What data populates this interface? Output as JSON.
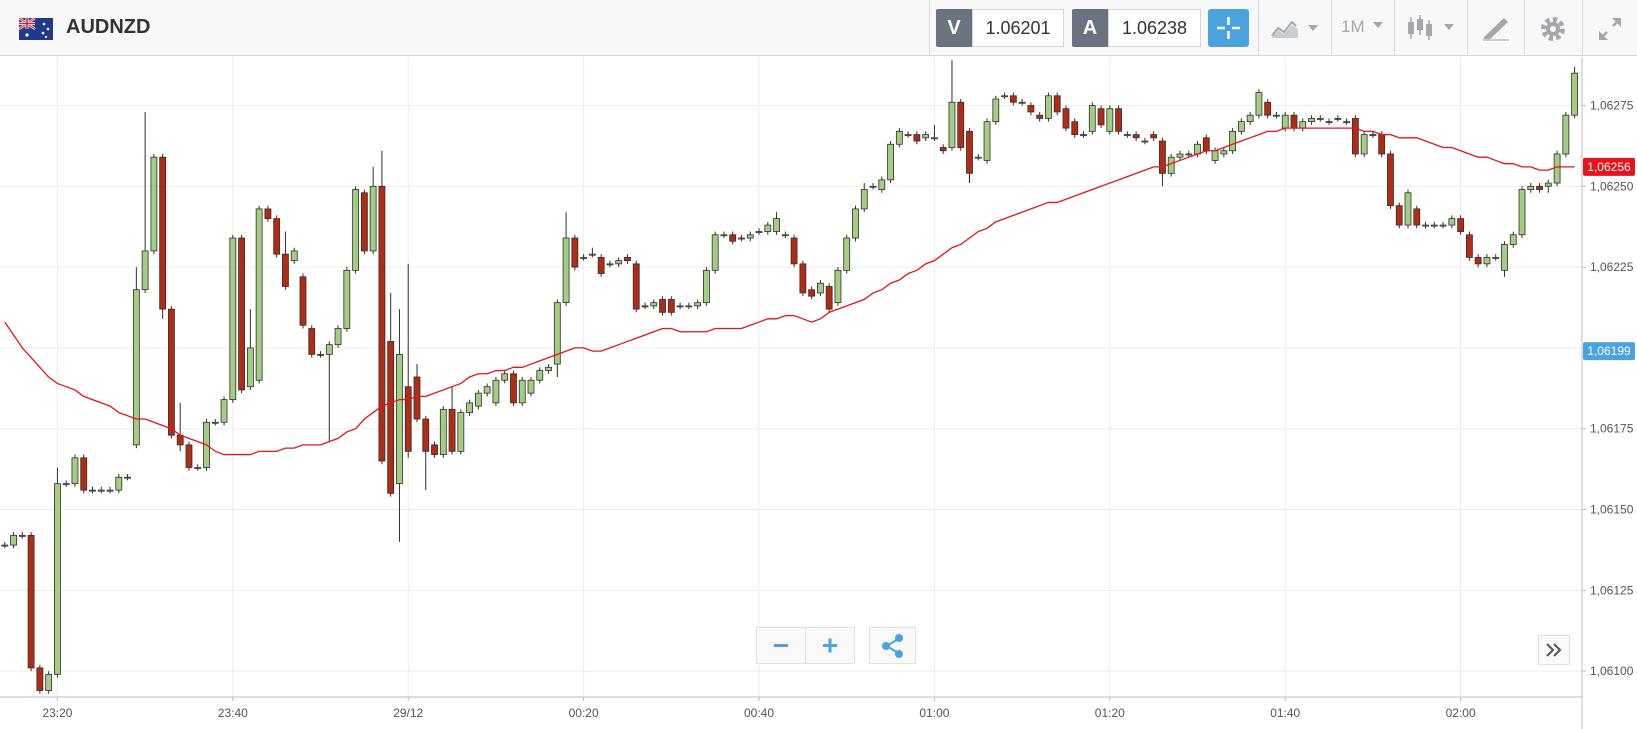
{
  "header": {
    "symbol": "AUDNZD",
    "bid_label": "V",
    "bid": "1.06201",
    "ask_label": "A",
    "ask": "1.06238",
    "timeframe": "1M"
  },
  "chart_data": {
    "type": "candlestick",
    "categories": [
      null,
      null,
      null,
      null,
      null,
      null,
      "23:20",
      null,
      null,
      null,
      null,
      null,
      null,
      null,
      null,
      null,
      null,
      null,
      null,
      null,
      null,
      null,
      null,
      null,
      null,
      null,
      "23:40",
      null,
      null,
      null,
      null,
      null,
      null,
      null,
      null,
      null,
      null,
      null,
      null,
      null,
      null,
      null,
      null,
      null,
      null,
      null,
      "29/12",
      null,
      null,
      null,
      null,
      null,
      null,
      null,
      null,
      null,
      null,
      null,
      null,
      null,
      null,
      null,
      null,
      null,
      null,
      null,
      "00:20",
      null,
      null,
      null,
      null,
      null,
      null,
      null,
      null,
      null,
      null,
      null,
      null,
      null,
      null,
      null,
      null,
      null,
      null,
      null,
      "00:40",
      null,
      null,
      null,
      null,
      null,
      null,
      null,
      null,
      null,
      null,
      null,
      null,
      null,
      null,
      null,
      null,
      null,
      null,
      null,
      "01:00",
      null,
      null,
      null,
      null,
      null,
      null,
      null,
      null,
      null,
      null,
      null,
      null,
      null,
      null,
      null,
      null,
      null,
      null,
      null,
      "01:20",
      null,
      null,
      null,
      null,
      null,
      null,
      null,
      null,
      null,
      null,
      null,
      null,
      null,
      null,
      null,
      null,
      null,
      null,
      null,
      "01:40",
      null,
      null,
      null,
      null,
      null,
      null,
      null,
      null,
      null,
      null,
      null,
      null,
      null,
      null,
      null,
      null,
      null,
      null,
      null,
      "02:00",
      null,
      null,
      null,
      null,
      null,
      null,
      null,
      null,
      null,
      null,
      null,
      null,
      null
    ],
    "open": [
      1.06139,
      1.06139,
      1.06142,
      1.06142,
      1.06101,
      1.06094,
      1.06099,
      1.06158,
      1.06158,
      1.06166,
      1.06156,
      1.06156,
      1.06156,
      1.06156,
      1.0616,
      1.0617,
      1.06218,
      1.0623,
      1.06259,
      1.06212,
      1.06173,
      1.0617,
      1.06163,
      1.06163,
      1.06177,
      1.06177,
      1.06184,
      1.06234,
      1.06188,
      1.0619,
      1.06243,
      1.0624,
      1.06229,
      1.06227,
      1.06222,
      1.06206,
      1.06198,
      1.06198,
      1.06201,
      1.06206,
      1.06224,
      1.06248,
      1.0623,
      1.0625,
      1.06202,
      1.06158,
      1.06188,
      1.06191,
      1.06178,
      1.0617,
      1.06167,
      1.06181,
      1.06168,
      1.0618,
      1.06182,
      1.06186,
      1.06183,
      1.0619,
      1.06192,
      1.06183,
      1.06186,
      1.0619,
      1.06193,
      1.06195,
      1.06214,
      1.06234,
      1.06228,
      1.06229,
      1.06228,
      1.06226,
      1.06226,
      1.06228,
      1.06226,
      1.06213,
      1.06213,
      1.06215,
      1.06215,
      1.06213,
      1.06213,
      1.06213,
      1.06214,
      1.06224,
      1.06235,
      1.06235,
      1.06234,
      1.06234,
      1.06236,
      1.06236,
      1.06236,
      1.06235,
      1.06234,
      1.06226,
      1.06218,
      1.06217,
      1.06219,
      1.06214,
      1.06224,
      1.06234,
      1.06243,
      1.0625,
      1.06249,
      1.06252,
      1.06263,
      1.06266,
      1.06266,
      1.06265,
      1.06265,
      1.06262,
      1.06262,
      1.06276,
      1.06267,
      1.06259,
      1.06258,
      1.0627,
      1.06278,
      1.06278,
      1.06276,
      1.06275,
      1.06272,
      1.06271,
      1.06278,
      1.06274,
      1.0627,
      1.06266,
      1.06267,
      1.06274,
      1.06267,
      1.06274,
      1.06266,
      1.06266,
      1.06264,
      1.06266,
      1.06264,
      1.06254,
      1.06259,
      1.0626,
      1.0626,
      1.06265,
      1.06258,
      1.0626,
      1.06261,
      1.06267,
      1.0627,
      1.06272,
      1.06276,
      1.06272,
      1.06268,
      1.06272,
      1.06268,
      1.0627,
      1.06271,
      1.0627,
      1.06271,
      1.0627,
      1.06271,
      1.0626,
      1.06266,
      1.06266,
      1.0626,
      1.06244,
      1.06238,
      1.06243,
      1.06238,
      1.06238,
      1.06238,
      1.06238,
      1.0624,
      1.06235,
      1.06228,
      1.06226,
      1.06228,
      1.06224,
      1.06232,
      1.06235,
      1.06249,
      1.0625,
      1.0625,
      1.06251,
      1.0626,
      1.06272
    ],
    "high": [
      1.0614,
      1.06143,
      1.06143,
      1.06143,
      1.06102,
      1.061,
      1.06163,
      1.06159,
      1.06167,
      1.06167,
      1.06157,
      1.06157,
      1.06157,
      1.06161,
      1.06161,
      1.06225,
      1.06273,
      1.0626,
      1.0626,
      1.06213,
      1.06183,
      1.06171,
      1.06164,
      1.06178,
      1.06178,
      1.06185,
      1.06235,
      1.06235,
      1.06212,
      1.06244,
      1.06244,
      1.06241,
      1.06236,
      1.06231,
      1.06223,
      1.06207,
      1.06199,
      1.06202,
      1.06207,
      1.06225,
      1.0625,
      1.06249,
      1.06256,
      1.06261,
      1.06217,
      1.06212,
      1.06226,
      1.06195,
      1.06179,
      1.06171,
      1.06182,
      1.06188,
      1.06181,
      1.06184,
      1.06187,
      1.06189,
      1.06191,
      1.06193,
      1.06193,
      1.06191,
      1.06191,
      1.06194,
      1.06195,
      1.06215,
      1.06242,
      1.06235,
      1.06229,
      1.06231,
      1.06229,
      1.06227,
      1.06228,
      1.06229,
      1.06227,
      1.06214,
      1.06215,
      1.06216,
      1.06216,
      1.06214,
      1.06214,
      1.06215,
      1.06225,
      1.06236,
      1.06236,
      1.06236,
      1.06235,
      1.06236,
      1.06237,
      1.06239,
      1.06242,
      1.06236,
      1.06235,
      1.06227,
      1.06219,
      1.06221,
      1.0622,
      1.06225,
      1.06235,
      1.06244,
      1.06251,
      1.06251,
      1.06253,
      1.06264,
      1.06268,
      1.06267,
      1.06267,
      1.06267,
      1.06269,
      1.06263,
      1.06289,
      1.06277,
      1.06268,
      1.0626,
      1.06271,
      1.06278,
      1.06279,
      1.06279,
      1.06277,
      1.06276,
      1.06273,
      1.06279,
      1.06279,
      1.06275,
      1.06271,
      1.06267,
      1.06276,
      1.06275,
      1.06275,
      1.06275,
      1.06267,
      1.06267,
      1.06265,
      1.06267,
      1.06265,
      1.0626,
      1.06261,
      1.06261,
      1.06264,
      1.06266,
      1.06262,
      1.06262,
      1.06268,
      1.06271,
      1.06273,
      1.0628,
      1.06277,
      1.06273,
      1.06273,
      1.06273,
      1.06271,
      1.06272,
      1.06272,
      1.06271,
      1.06272,
      1.06271,
      1.06272,
      1.06267,
      1.06267,
      1.06267,
      1.06261,
      1.06245,
      1.06249,
      1.06244,
      1.06239,
      1.06239,
      1.06239,
      1.06241,
      1.06241,
      1.06236,
      1.06229,
      1.06229,
      1.06229,
      1.06233,
      1.06236,
      1.0625,
      1.06251,
      1.06251,
      1.06252,
      1.06261,
      1.06273,
      1.06287
    ],
    "low": [
      1.06138,
      1.06138,
      1.06141,
      1.061,
      1.06093,
      1.06093,
      1.06098,
      1.06157,
      1.06157,
      1.06155,
      1.06155,
      1.06155,
      1.06155,
      1.06155,
      1.06159,
      1.06169,
      1.06217,
      1.06229,
      1.06209,
      1.06172,
      1.06168,
      1.06162,
      1.06162,
      1.06162,
      1.06176,
      1.06176,
      1.06183,
      1.06186,
      1.06187,
      1.06189,
      1.06239,
      1.06228,
      1.06218,
      1.06226,
      1.06206,
      1.06197,
      1.06197,
      1.06171,
      1.062,
      1.06205,
      1.06223,
      1.06229,
      1.06229,
      1.06164,
      1.06154,
      1.0614,
      1.06166,
      1.06177,
      1.06156,
      1.06166,
      1.06166,
      1.06167,
      1.06167,
      1.06179,
      1.06181,
      1.06185,
      1.06182,
      1.06189,
      1.06182,
      1.06182,
      1.06185,
      1.06189,
      1.06192,
      1.06191,
      1.06213,
      1.06224,
      1.06227,
      1.06228,
      1.06222,
      1.06225,
      1.06225,
      1.06226,
      1.06211,
      1.06212,
      1.06212,
      1.0621,
      1.0621,
      1.06212,
      1.06212,
      1.06212,
      1.06213,
      1.06223,
      1.06234,
      1.06232,
      1.06233,
      1.06233,
      1.06235,
      1.06235,
      1.06235,
      1.06234,
      1.06225,
      1.06216,
      1.06215,
      1.06216,
      1.06211,
      1.06213,
      1.06223,
      1.06233,
      1.06242,
      1.06249,
      1.06248,
      1.06251,
      1.06262,
      1.06265,
      1.06263,
      1.06264,
      1.06264,
      1.0626,
      1.06261,
      1.06261,
      1.06251,
      1.06258,
      1.06257,
      1.06269,
      1.06277,
      1.06275,
      1.06275,
      1.06272,
      1.0627,
      1.0627,
      1.06272,
      1.06267,
      1.06265,
      1.06265,
      1.06266,
      1.06268,
      1.06266,
      1.06266,
      1.06265,
      1.06264,
      1.06263,
      1.06264,
      1.0625,
      1.06253,
      1.06258,
      1.06259,
      1.06259,
      1.0626,
      1.06257,
      1.06259,
      1.0626,
      1.06266,
      1.06269,
      1.06271,
      1.06271,
      1.06271,
      1.06267,
      1.06267,
      1.06267,
      1.06269,
      1.0627,
      1.06269,
      1.0627,
      1.06269,
      1.06259,
      1.06259,
      1.06265,
      1.06259,
      1.06243,
      1.06237,
      1.06237,
      1.06237,
      1.06237,
      1.06237,
      1.06237,
      1.06237,
      1.06235,
      1.06227,
      1.06225,
      1.06225,
      1.06227,
      1.06222,
      1.06231,
      1.06234,
      1.06248,
      1.06248,
      1.06248,
      1.0625,
      1.06259,
      1.06271
    ],
    "close": [
      1.06139,
      1.06142,
      1.06142,
      1.06101,
      1.06094,
      1.06099,
      1.06158,
      1.06158,
      1.06166,
      1.06156,
      1.06156,
      1.06156,
      1.06156,
      1.0616,
      1.0616,
      1.06218,
      1.0623,
      1.06259,
      1.06212,
      1.06173,
      1.0617,
      1.06163,
      1.06163,
      1.06177,
      1.06177,
      1.06184,
      1.06234,
      1.06187,
      1.062,
      1.06243,
      1.0624,
      1.06229,
      1.06219,
      1.0623,
      1.06207,
      1.06198,
      1.06198,
      1.06201,
      1.06206,
      1.06224,
      1.06249,
      1.0623,
      1.0625,
      1.06165,
      1.06155,
      1.06198,
      1.06168,
      1.06178,
      1.06168,
      1.06167,
      1.06181,
      1.06168,
      1.0618,
      1.06183,
      1.06186,
      1.06188,
      1.0619,
      1.06192,
      1.06183,
      1.0619,
      1.0619,
      1.06193,
      1.06194,
      1.06214,
      1.06234,
      1.06225,
      1.06228,
      1.06229,
      1.06223,
      1.06226,
      1.06227,
      1.06227,
      1.06212,
      1.06213,
      1.06214,
      1.06211,
      1.06211,
      1.06213,
      1.06213,
      1.06214,
      1.06224,
      1.06235,
      1.06235,
      1.06233,
      1.06234,
      1.06235,
      1.06236,
      1.06238,
      1.0624,
      1.06235,
      1.06226,
      1.06217,
      1.06216,
      1.0622,
      1.06212,
      1.06224,
      1.06234,
      1.06243,
      1.06249,
      1.0625,
      1.06252,
      1.06263,
      1.06267,
      1.06266,
      1.06264,
      1.06266,
      1.06265,
      1.06261,
      1.06276,
      1.06262,
      1.06254,
      1.06259,
      1.0627,
      1.06277,
      1.06278,
      1.06276,
      1.06276,
      1.06273,
      1.06271,
      1.06278,
      1.06273,
      1.06268,
      1.06266,
      1.06266,
      1.06275,
      1.06269,
      1.06274,
      1.06267,
      1.06266,
      1.06265,
      1.06264,
      1.06265,
      1.06254,
      1.06259,
      1.0626,
      1.0626,
      1.06263,
      1.06261,
      1.06261,
      1.06261,
      1.06267,
      1.0627,
      1.06272,
      1.06279,
      1.06272,
      1.06272,
      1.06272,
      1.06268,
      1.0627,
      1.06271,
      1.06271,
      1.0627,
      1.06271,
      1.0627,
      1.0626,
      1.06266,
      1.06266,
      1.0626,
      1.06244,
      1.06238,
      1.06248,
      1.06238,
      1.06238,
      1.06238,
      1.06238,
      1.0624,
      1.06236,
      1.06228,
      1.06226,
      1.06228,
      1.06228,
      1.06232,
      1.06235,
      1.06249,
      1.0625,
      1.06249,
      1.06251,
      1.0626,
      1.06272,
      1.06285
    ],
    "up_color": "#a3cd82",
    "down_color": "#b12b15",
    "line": {
      "color": "#e8131b",
      "values": [
        1.06208,
        1.06204,
        1.062,
        1.06197,
        1.06194,
        1.06191,
        1.06189,
        1.06188,
        1.06187,
        1.06185,
        1.06184,
        1.06183,
        1.06182,
        1.0618,
        1.06179,
        1.06178,
        1.06178,
        1.06177,
        1.06176,
        1.06175,
        1.06173,
        1.06172,
        1.06171,
        1.0617,
        1.06168,
        1.06167,
        1.06167,
        1.06167,
        1.06167,
        1.06168,
        1.06168,
        1.06168,
        1.06169,
        1.06169,
        1.0617,
        1.0617,
        1.0617,
        1.06171,
        1.06172,
        1.06174,
        1.06175,
        1.06178,
        1.0618,
        1.06182,
        1.06183,
        1.06184,
        1.06184,
        1.06185,
        1.06185,
        1.06186,
        1.06187,
        1.06188,
        1.06189,
        1.06191,
        1.06192,
        1.06192,
        1.06193,
        1.06193,
        1.06194,
        1.06194,
        1.06195,
        1.06196,
        1.06197,
        1.06198,
        1.06199,
        1.062,
        1.062,
        1.06199,
        1.06199,
        1.062,
        1.06201,
        1.06202,
        1.06203,
        1.06204,
        1.06205,
        1.06206,
        1.06206,
        1.06205,
        1.06205,
        1.06205,
        1.06205,
        1.06206,
        1.06206,
        1.06206,
        1.06206,
        1.06207,
        1.06208,
        1.06209,
        1.06209,
        1.0621,
        1.0621,
        1.06209,
        1.06208,
        1.06209,
        1.06211,
        1.06212,
        1.06213,
        1.06214,
        1.06215,
        1.06217,
        1.06218,
        1.0622,
        1.06221,
        1.06223,
        1.06224,
        1.06226,
        1.06227,
        1.06229,
        1.06231,
        1.06232,
        1.06234,
        1.06236,
        1.06237,
        1.06239,
        1.0624,
        1.06241,
        1.06242,
        1.06243,
        1.06244,
        1.06245,
        1.06245,
        1.06246,
        1.06247,
        1.06248,
        1.06249,
        1.0625,
        1.06251,
        1.06252,
        1.06253,
        1.06254,
        1.06255,
        1.06256,
        1.06256,
        1.06257,
        1.06258,
        1.06259,
        1.0626,
        1.06261,
        1.06261,
        1.06262,
        1.06263,
        1.06264,
        1.06265,
        1.06266,
        1.06267,
        1.06267,
        1.06268,
        1.06268,
        1.06268,
        1.06268,
        1.06268,
        1.06268,
        1.06268,
        1.06268,
        1.06268,
        1.06267,
        1.06267,
        1.06266,
        1.06266,
        1.06265,
        1.06265,
        1.06265,
        1.06264,
        1.06263,
        1.06262,
        1.06262,
        1.06261,
        1.0626,
        1.06259,
        1.06259,
        1.06258,
        1.06257,
        1.06257,
        1.06256,
        1.06256,
        1.06255,
        1.06255,
        1.06256,
        1.06256,
        1.06256
      ]
    },
    "ylim": [
      1.06092,
      1.0629
    ],
    "yticks": [
      {
        "value": 1.061,
        "label": "1,06100"
      },
      {
        "value": 1.06125,
        "label": "1,06125"
      },
      {
        "value": 1.0615,
        "label": "1,06150"
      },
      {
        "value": 1.06175,
        "label": "1,06175"
      },
      {
        "value": 1.062,
        "label": "1,06200"
      },
      {
        "value": 1.06225,
        "label": "1,06225"
      },
      {
        "value": 1.0625,
        "label": "1,06250"
      },
      {
        "value": 1.06275,
        "label": "1,06275"
      }
    ],
    "price_markers": [
      {
        "value": 1.06256,
        "label": "1,06256",
        "color": "#e8131b"
      },
      {
        "value": 1.06199,
        "label": "1,06199",
        "color": "#4aa3df"
      }
    ],
    "grid": true
  }
}
